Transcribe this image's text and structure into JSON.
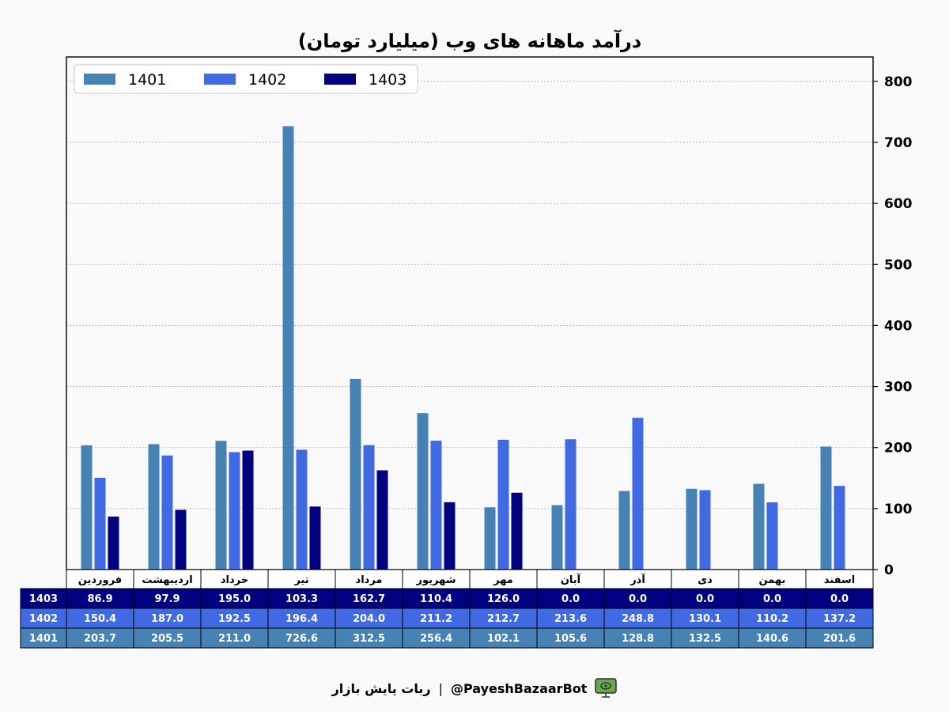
{
  "chart_data": {
    "type": "bar",
    "title": "درآمد ماهانه های وب (میلیارد تومان)",
    "categories": [
      "فروردین",
      "اردیبهشت",
      "خرداد",
      "تیر",
      "مرداد",
      "شهریور",
      "مهر",
      "آبان",
      "آذر",
      "دی",
      "بهمن",
      "اسفند"
    ],
    "series": [
      {
        "name": "1401",
        "color": "#4682b4",
        "values": [
          203.7,
          205.5,
          211.0,
          726.6,
          312.5,
          256.4,
          102.1,
          105.6,
          128.8,
          132.5,
          140.6,
          201.6
        ]
      },
      {
        "name": "1402",
        "color": "#4169e1",
        "values": [
          150.4,
          187.0,
          192.5,
          196.4,
          204.0,
          211.2,
          212.7,
          213.6,
          248.8,
          130.1,
          110.2,
          137.2
        ]
      },
      {
        "name": "1403",
        "color": "#000080",
        "values": [
          86.9,
          97.9,
          195.0,
          103.3,
          162.7,
          110.4,
          126.0,
          0.0,
          0.0,
          0.0,
          0.0,
          0.0
        ]
      }
    ],
    "table_rows": [
      {
        "label": "1403",
        "color": "#000080",
        "values": [
          "86.9",
          "97.9",
          "195.0",
          "103.3",
          "162.7",
          "110.4",
          "126.0",
          "0.0",
          "0.0",
          "0.0",
          "0.0",
          "0.0"
        ]
      },
      {
        "label": "1402",
        "color": "#4169e1",
        "values": [
          "150.4",
          "187.0",
          "192.5",
          "196.4",
          "204.0",
          "211.2",
          "212.7",
          "213.6",
          "248.8",
          "130.1",
          "110.2",
          "137.2"
        ]
      },
      {
        "label": "1401",
        "color": "#4682b4",
        "values": [
          "203.7",
          "205.5",
          "211.0",
          "726.6",
          "312.5",
          "256.4",
          "102.1",
          "105.6",
          "128.8",
          "132.5",
          "140.6",
          "201.6"
        ]
      }
    ],
    "yticks": [
      0,
      100,
      200,
      300,
      400,
      500,
      600,
      700,
      800
    ],
    "ylim": [
      0,
      840
    ],
    "y_axis_side": "right",
    "grid": true,
    "legend_position": "top-left"
  },
  "footer": {
    "text": "ربات پایش بازار",
    "separator": "|",
    "handle": "@PayeshBazaarBot",
    "icon": "tv-bot-icon"
  }
}
